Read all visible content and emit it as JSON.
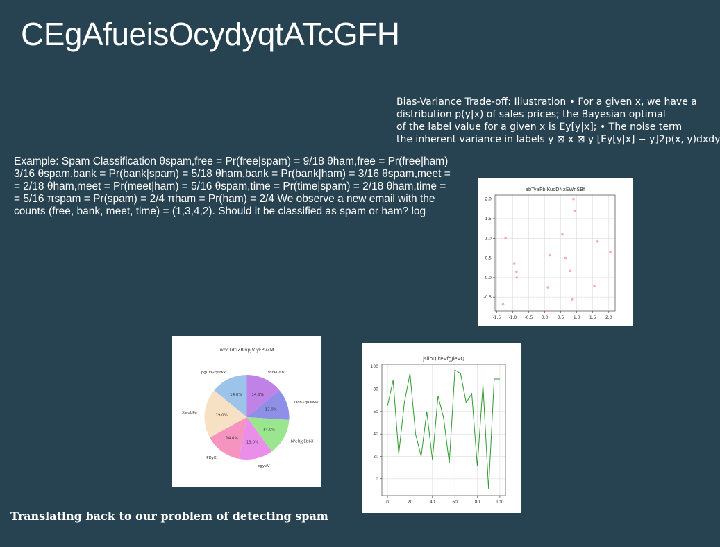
{
  "slide": {
    "title": "CEgAfueisOcydyqtATcGFH",
    "bias_lines": [
      "Bias-Variance Trade-off: Illustration • For a given x, we have a",
      "distribution p(y|x) of sales prices; the Bayesian optimal",
      "of the label value for a given x is Ey[y|x]; • The noise term",
      "the inherent variance in labels y ⊠ x ⊠ y [Ey[y|x] − y]2p(x, y)dxdy"
    ],
    "example_lines": [
      "Example: Spam Classification θspam,free = Pr(free|spam) = 9/18 θham,free = Pr(free|ham)",
      "3/16 θspam,bank = Pr(bank|spam) = 5/18 θham,bank = Pr(bank|ham) = 3/16 θspam,meet =",
      "= 2/18 θham,meet = Pr(meet|ham) = 5/16 θspam,time = Pr(time|spam) = 2/18 θham,time =",
      "= 5/16 πspam = Pr(spam) = 2/4 πham = Pr(ham) = 2/4 We observe a new email with the",
      "counts (free, bank, meet, time) = (1,3,4,2). Should it be classified as spam or ham? log"
    ],
    "footer": "Translating back to our problem of detecting spam"
  },
  "chart_data": [
    {
      "type": "scatter",
      "title": "abTyaPbiKucDNxEWnSBf",
      "color": "#f4a3a3",
      "xlim": [
        -1.55,
        2.2
      ],
      "ylim": [
        -0.85,
        2.1
      ],
      "xticks": [
        "-1.5",
        "-1.0",
        "-0.5",
        "0.0",
        "0.5",
        "1.0",
        "1.5",
        "2.0"
      ],
      "yticks": [
        "-0.5",
        "0.0",
        "0.5",
        "1.0",
        "1.5",
        "2.0"
      ],
      "xtick_values": [
        -1.5,
        -1.0,
        -0.5,
        0.0,
        0.5,
        1.0,
        1.5,
        2.0
      ],
      "ytick_values": [
        -0.5,
        0.0,
        0.5,
        1.0,
        1.5,
        2.0
      ],
      "grid": true,
      "points": [
        {
          "x": -1.3,
          "y": -0.68
        },
        {
          "x": -1.22,
          "y": 1.0
        },
        {
          "x": -0.95,
          "y": 0.35
        },
        {
          "x": -0.88,
          "y": 0.15
        },
        {
          "x": -0.87,
          "y": 0.0
        },
        {
          "x": 0.05,
          "y": -0.85
        },
        {
          "x": 0.1,
          "y": -0.25
        },
        {
          "x": 0.15,
          "y": 0.57
        },
        {
          "x": 0.55,
          "y": 1.1
        },
        {
          "x": 0.65,
          "y": 0.5
        },
        {
          "x": 0.8,
          "y": 0.17
        },
        {
          "x": 0.85,
          "y": -0.55
        },
        {
          "x": 0.9,
          "y": 2.0
        },
        {
          "x": 0.93,
          "y": 1.7
        },
        {
          "x": 1.55,
          "y": -0.22
        },
        {
          "x": 1.65,
          "y": 0.92
        },
        {
          "x": 2.05,
          "y": 0.65
        }
      ]
    },
    {
      "type": "pie",
      "title": "wbcTdtiZBlvpJV yFPvZM",
      "slices": [
        {
          "label": "fhcPIVth",
          "value": 14.0,
          "pct": "14.0%",
          "color": "#c182e8"
        },
        {
          "label": "DcbXqRXww",
          "value": 12.0,
          "pct": "12.0%",
          "color": "#8f8fe8"
        },
        {
          "label": "bPeRjgEbbX",
          "value": 14.0,
          "pct": "14.0%",
          "color": "#99e68e"
        },
        {
          "label": "cgyVV",
          "value": 13.0,
          "pct": "13.0%",
          "color": "#ea8eea"
        },
        {
          "label": "PDyKi",
          "value": 14.0,
          "pct": "14.0%",
          "color": "#f594bf"
        },
        {
          "label": "XwgbPe",
          "value": 19.0,
          "pct": "19.0%",
          "color": "#f7e1c4"
        },
        {
          "label": "pgCEGFyswx",
          "value": 14.0,
          "pct": "14.0%",
          "color": "#9cc3ea"
        }
      ]
    },
    {
      "type": "line",
      "title": "jslipQlkeVfgJleVQ",
      "color": "#2e9b2e",
      "xlim": [
        -5,
        105
      ],
      "ylim": [
        -15,
        102
      ],
      "xticks": [
        "0",
        "20",
        "40",
        "60",
        "80",
        "100"
      ],
      "yticks": [
        "0",
        "20",
        "40",
        "60",
        "80",
        "100"
      ],
      "xtick_values": [
        0,
        20,
        40,
        60,
        80,
        100
      ],
      "ytick_values": [
        0,
        20,
        40,
        60,
        80,
        100
      ],
      "grid": true,
      "x": [
        0,
        5,
        10,
        15,
        20,
        25,
        30,
        35,
        40,
        45,
        50,
        55,
        60,
        65,
        70,
        75,
        80,
        85,
        90,
        95,
        100
      ],
      "y": [
        65,
        88,
        22,
        68,
        94,
        40,
        20,
        60,
        17,
        74,
        54,
        14,
        97,
        94,
        68,
        76,
        11,
        84,
        -9,
        89,
        89
      ]
    }
  ]
}
